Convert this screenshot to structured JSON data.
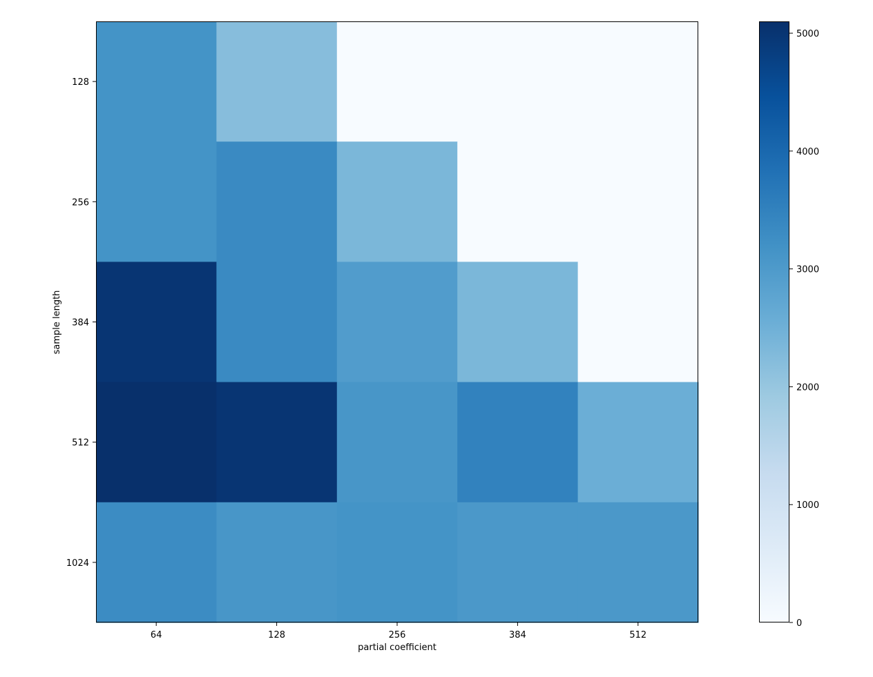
{
  "chart_data": {
    "type": "heatmap",
    "title": "",
    "xlabel": "partial coefficient",
    "ylabel": "sample length",
    "x_categories": [
      "64",
      "128",
      "256",
      "384",
      "512"
    ],
    "y_categories": [
      "128",
      "256",
      "384",
      "512",
      "1024"
    ],
    "values": [
      [
        3150,
        2200,
        0,
        0,
        0
      ],
      [
        3150,
        3350,
        2350,
        0,
        0
      ],
      [
        5000,
        3350,
        2950,
        2350,
        0
      ],
      [
        5100,
        5000,
        3100,
        3500,
        2550
      ],
      [
        3300,
        3100,
        3150,
        3050,
        3050
      ]
    ],
    "colormap": "Blues",
    "colorbar": {
      "min": 0,
      "max": 5100,
      "ticks": [
        0,
        1000,
        2000,
        3000,
        4000,
        5000
      ]
    },
    "grid": false
  }
}
